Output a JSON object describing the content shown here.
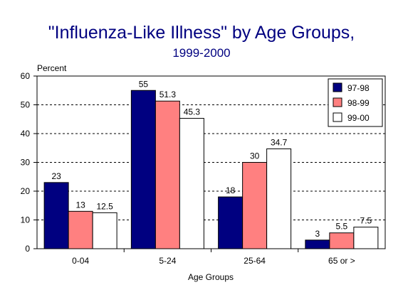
{
  "chart_data": {
    "type": "bar",
    "title": "\"Influenza-Like Illness\" by Age Groups,",
    "subtitle": "1999-2000",
    "ylabel": "Percent",
    "xlabel": "Age Groups",
    "ylim": [
      0,
      60
    ],
    "yticks": [
      0,
      10,
      20,
      30,
      40,
      50,
      60
    ],
    "grid": true,
    "legend_position": "top-right",
    "categories": [
      "0-04",
      "5-24",
      "25-64",
      "65 or >"
    ],
    "series": [
      {
        "name": "97-98",
        "color": "#000080",
        "values": [
          23,
          55,
          18,
          3
        ],
        "labels": [
          "23",
          "55",
          "18",
          "3"
        ]
      },
      {
        "name": "98-99",
        "color": "#FF8080",
        "values": [
          13,
          51.3,
          30,
          5.5
        ],
        "labels": [
          "13",
          "51.3",
          "30",
          "5.5"
        ]
      },
      {
        "name": "99-00",
        "color": "#FFFFFF",
        "values": [
          12.5,
          45.3,
          34.7,
          7.5
        ],
        "labels": [
          "12.5",
          "45.3",
          "34.7",
          "7.5"
        ]
      }
    ]
  }
}
